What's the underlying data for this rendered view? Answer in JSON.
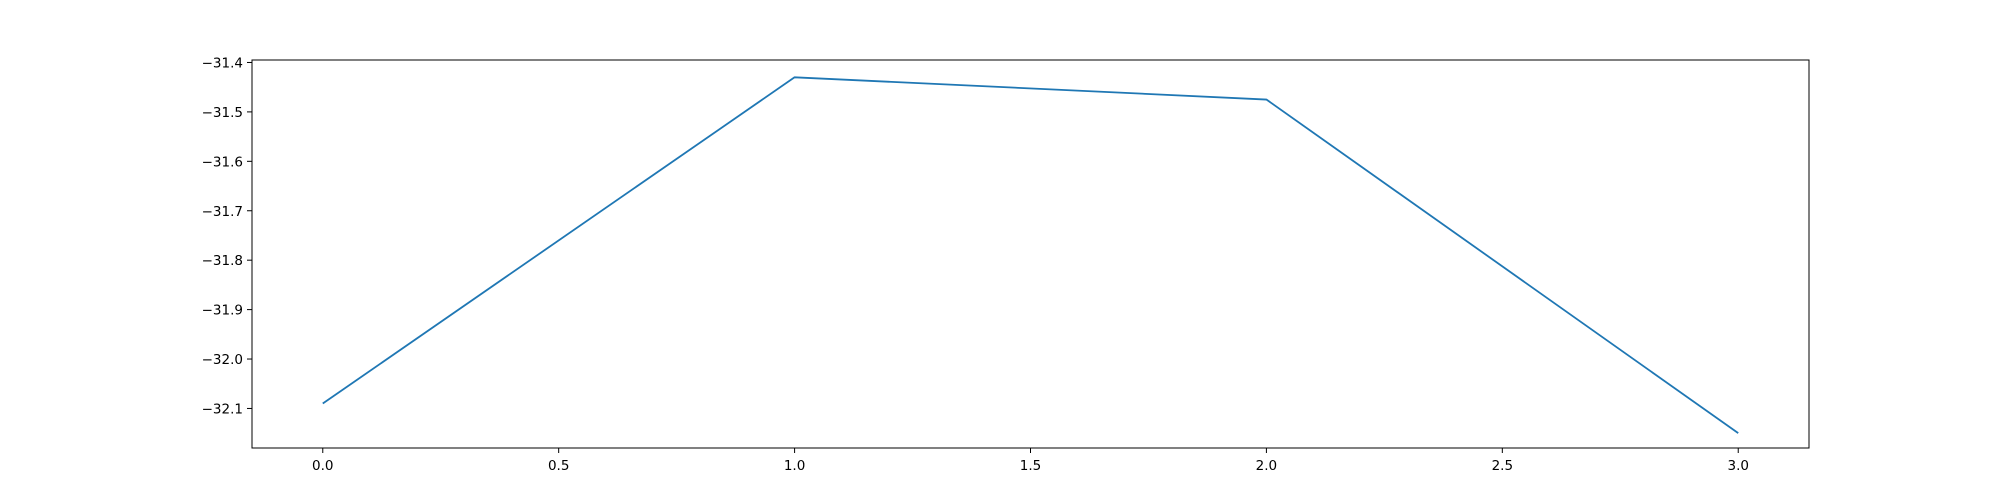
{
  "chart_data": {
    "type": "line",
    "title": "",
    "xlabel": "",
    "ylabel": "",
    "x": [
      0,
      1,
      2,
      3
    ],
    "series": [
      {
        "values": [
          -32.09,
          -31.43,
          -31.475,
          -32.15
        ],
        "color": "#1f77b4"
      }
    ],
    "xlim": [
      -0.15,
      3.15
    ],
    "ylim": [
      -32.18,
      -31.395
    ],
    "xticks": [
      0.0,
      0.5,
      1.0,
      1.5,
      2.0,
      2.5,
      3.0
    ],
    "xtick_labels": [
      "0.0",
      "0.5",
      "1.0",
      "1.5",
      "2.0",
      "2.5",
      "3.0"
    ],
    "yticks": [
      -31.4,
      -31.5,
      -31.6,
      -31.7,
      -31.8,
      -31.9,
      -32.0,
      -32.1
    ],
    "ytick_labels": [
      "−31.4",
      "−31.5",
      "−31.6",
      "−31.7",
      "−31.8",
      "−31.9",
      "−32.0",
      "−32.1"
    ],
    "grid": false,
    "legend": "none"
  }
}
